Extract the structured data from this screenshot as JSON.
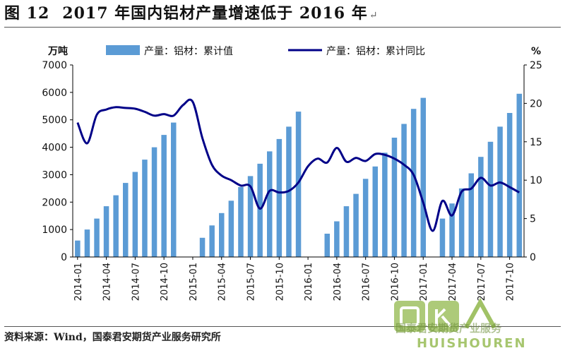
{
  "figure": {
    "label": "图 12",
    "heading": "2017 年国内铝材产量增速低于 2016 年",
    "mark": "↵"
  },
  "source": "资料来源：Wind，国泰君安期货产业服务研究所",
  "watermark": {
    "chinese": "国泰君安期货产业服务",
    "english": "HUISHOUREN",
    "logo_text": "回收人"
  },
  "colors": {
    "bars": "#5b9bd5",
    "line": "#000088",
    "axis": "#000000"
  },
  "chart_data": {
    "type": "bar+line",
    "y_left_unit": "万吨",
    "y_right_unit": "%",
    "y_left_lim": [
      0,
      7000
    ],
    "y_left_ticks": [
      0,
      1000,
      2000,
      3000,
      4000,
      5000,
      6000,
      7000
    ],
    "y_right_lim": [
      0,
      25
    ],
    "y_right_ticks": [
      0,
      5,
      10,
      15,
      20,
      25
    ],
    "legend_position": "top",
    "x_tick_labels": [
      "2014-01",
      "2014-04",
      "2014-07",
      "2014-10",
      "2015-01",
      "2015-04",
      "2015-07",
      "2015-10",
      "2016-01",
      "2016-04",
      "2016-07",
      "2016-10",
      "2017-01",
      "2017-04",
      "2017-07",
      "2017-10"
    ],
    "x": [
      "2014-01",
      "2014-02",
      "2014-03",
      "2014-04",
      "2014-05",
      "2014-06",
      "2014-07",
      "2014-08",
      "2014-09",
      "2014-10",
      "2014-11",
      "2014-12",
      "2015-01",
      "2015-02",
      "2015-03",
      "2015-04",
      "2015-05",
      "2015-06",
      "2015-07",
      "2015-08",
      "2015-09",
      "2015-10",
      "2015-11",
      "2015-12",
      "2016-01",
      "2016-02",
      "2016-03",
      "2016-04",
      "2016-05",
      "2016-06",
      "2016-07",
      "2016-08",
      "2016-09",
      "2016-10",
      "2016-11",
      "2016-12",
      "2017-01",
      "2017-02",
      "2017-03",
      "2017-04",
      "2017-05",
      "2017-06",
      "2017-07",
      "2017-08",
      "2017-09",
      "2017-10",
      "2017-11"
    ],
    "series": [
      {
        "name": "产量：铝材：累计值",
        "type": "bar",
        "axis": "left",
        "values": [
          600,
          1000,
          1400,
          1850,
          2250,
          2700,
          3100,
          3550,
          4000,
          4450,
          4900,
          null,
          null,
          700,
          1150,
          1600,
          2050,
          2550,
          2950,
          3400,
          3850,
          4300,
          4750,
          5300,
          null,
          null,
          850,
          1300,
          1850,
          2300,
          2850,
          3300,
          3800,
          4350,
          4850,
          5400,
          5800,
          null,
          1400,
          1950,
          2500,
          3050,
          3650,
          4200,
          4750,
          5250,
          5950
        ]
      },
      {
        "name": "产量：铝材：累计同比",
        "type": "line",
        "axis": "right",
        "values": [
          17.5,
          14.8,
          18.5,
          19.2,
          19.5,
          19.4,
          19.3,
          18.9,
          18.4,
          18.6,
          18.4,
          19.8,
          20.2,
          15.5,
          12.0,
          10.6,
          10.0,
          9.3,
          9.2,
          6.3,
          8.6,
          8.4,
          8.6,
          9.7,
          11.8,
          12.8,
          12.3,
          14.2,
          12.4,
          12.9,
          12.5,
          13.4,
          13.3,
          12.8,
          12.0,
          10.7,
          7.1,
          3.4,
          7.3,
          5.4,
          8.5,
          8.9,
          10.3,
          9.3,
          9.7,
          9.1,
          8.4
        ]
      }
    ]
  }
}
